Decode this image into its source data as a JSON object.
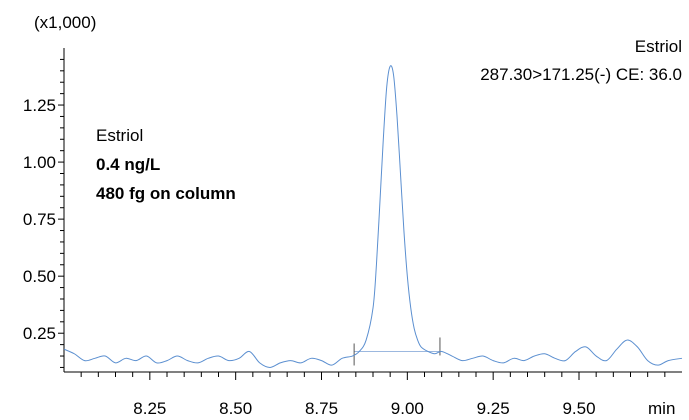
{
  "chart_data": {
    "type": "line",
    "y_multiplier_label": "(x1,000)",
    "x_unit": "min",
    "xlim": [
      8.0,
      9.8
    ],
    "ylim": [
      0.08,
      1.5
    ],
    "x_ticks": [
      8.25,
      8.5,
      8.75,
      9.0,
      9.25,
      9.5
    ],
    "x_tick_labels": [
      "8.25",
      "8.50",
      "8.75",
      "9.00",
      "9.25",
      "9.50"
    ],
    "y_ticks": [
      0.25,
      0.5,
      0.75,
      1.0,
      1.25
    ],
    "y_tick_labels": [
      "0.25",
      "0.50",
      "0.75",
      "1.00",
      "1.25"
    ],
    "grid": false,
    "series": [
      {
        "color": "#5b8fd0",
        "x": [
          8.0,
          8.03,
          8.06,
          8.09,
          8.12,
          8.15,
          8.18,
          8.21,
          8.24,
          8.27,
          8.3,
          8.33,
          8.36,
          8.39,
          8.42,
          8.45,
          8.48,
          8.51,
          8.54,
          8.57,
          8.6,
          8.63,
          8.66,
          8.69,
          8.72,
          8.75,
          8.78,
          8.81,
          8.84,
          8.86,
          8.88,
          8.9,
          8.91,
          8.92,
          8.93,
          8.94,
          8.95,
          8.96,
          8.97,
          8.98,
          8.99,
          9.0,
          9.01,
          9.02,
          9.03,
          9.04,
          9.06,
          9.08,
          9.1,
          9.13,
          9.16,
          9.19,
          9.22,
          9.25,
          9.28,
          9.31,
          9.34,
          9.37,
          9.4,
          9.43,
          9.46,
          9.49,
          9.52,
          9.55,
          9.58,
          9.61,
          9.64,
          9.67,
          9.7,
          9.73,
          9.76,
          9.8
        ],
        "y": [
          0.18,
          0.16,
          0.13,
          0.14,
          0.15,
          0.12,
          0.14,
          0.13,
          0.15,
          0.12,
          0.13,
          0.15,
          0.13,
          0.12,
          0.14,
          0.15,
          0.13,
          0.14,
          0.17,
          0.12,
          0.1,
          0.12,
          0.13,
          0.12,
          0.14,
          0.13,
          0.11,
          0.14,
          0.15,
          0.17,
          0.22,
          0.36,
          0.55,
          0.82,
          1.1,
          1.33,
          1.42,
          1.38,
          1.2,
          0.95,
          0.7,
          0.5,
          0.36,
          0.27,
          0.22,
          0.19,
          0.17,
          0.16,
          0.17,
          0.15,
          0.13,
          0.14,
          0.15,
          0.13,
          0.12,
          0.14,
          0.13,
          0.15,
          0.16,
          0.14,
          0.13,
          0.17,
          0.19,
          0.15,
          0.13,
          0.18,
          0.22,
          0.19,
          0.13,
          0.11,
          0.13,
          0.14
        ]
      }
    ],
    "baseline": {
      "x1": 8.845,
      "y1": 0.17,
      "x2": 9.095,
      "y2": 0.17,
      "color": "#9cb8df"
    }
  },
  "annotations": {
    "compound_top_right": "Estriol",
    "transition": "287.30>171.25(-) CE: 36.0",
    "compound_left": "Estriol",
    "concentration": "0.4 ng/L",
    "amount": "480 fg on column"
  }
}
